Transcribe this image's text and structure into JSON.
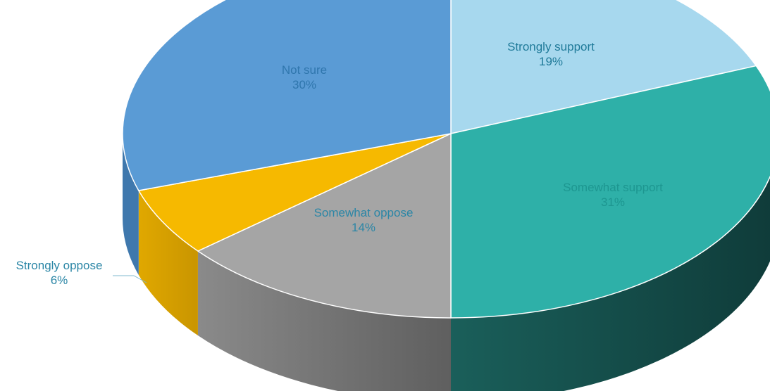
{
  "chart_data": {
    "type": "pie",
    "title": "",
    "slices": [
      {
        "label": "Strongly support",
        "value": 19,
        "display": "19%",
        "color": "#a7d8ee",
        "side_color": "#5f9fbd",
        "label_color": "#1f7a99"
      },
      {
        "label": "Somewhat support",
        "value": 31,
        "display": "31%",
        "color": "#2eb0a8",
        "side_color": "#124745",
        "label_color": "#1d9690"
      },
      {
        "label": "Somewhat oppose",
        "value": 14,
        "display": "14%",
        "color": "#a5a5a5",
        "side_color": "#6e6e6e",
        "label_color": "#2b86a6"
      },
      {
        "label": "Strongly oppose",
        "value": 6,
        "display": "6%",
        "color": "#f6b900",
        "side_color": "#d49e00",
        "label_color": "#2b86a6"
      },
      {
        "label": "Not sure",
        "value": 30,
        "display": "30%",
        "color": "#5a9bd5",
        "side_color": "#3f78ad",
        "label_color": "#2f76ad"
      }
    ],
    "start_angle_deg": 0,
    "direction": "clockwise",
    "style": "3d-exploded-none",
    "legend": "none"
  }
}
